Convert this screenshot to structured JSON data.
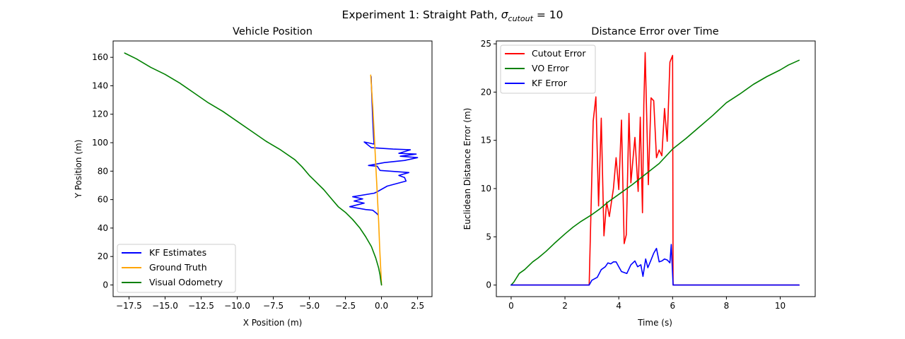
{
  "figure": {
    "suptitle_main": "Experiment 1: Straight Path, ",
    "suptitle_sigma": "σ",
    "suptitle_sub": "cutout",
    "suptitle_eq": " = 10"
  },
  "chart_data": [
    {
      "type": "line",
      "title": "Vehicle Position",
      "xlabel": "X Position (m)",
      "ylabel": "Y Position (m)",
      "xlim": [
        -18.6,
        3.5
      ],
      "ylim": [
        -8.2,
        171.5
      ],
      "xticks": [
        -17.5,
        -15.0,
        -12.5,
        -10.0,
        -7.5,
        -5.0,
        -2.5,
        0.0,
        2.5
      ],
      "xtick_labels": [
        "−17.5",
        "−15.0",
        "−12.5",
        "−10.0",
        "−7.5",
        "−5.0",
        "−2.5",
        "0.0",
        "2.5"
      ],
      "yticks": [
        0,
        20,
        40,
        60,
        80,
        100,
        120,
        140,
        160
      ],
      "ytick_labels": [
        "0",
        "20",
        "40",
        "60",
        "80",
        "100",
        "120",
        "140",
        "160"
      ],
      "legend_position": "lower-left",
      "series": [
        {
          "name": "KF Estimates",
          "color": "#0000ff",
          "points": [
            [
              -0.72,
              146.5
            ],
            [
              -0.66,
              130
            ],
            [
              -0.6,
              115
            ],
            [
              -0.55,
              104
            ],
            [
              -0.52,
              99
            ],
            [
              -1.2,
              100.5
            ],
            [
              -0.7,
              96.5
            ],
            [
              0.8,
              95.5
            ],
            [
              2.0,
              95.0
            ],
            [
              1.2,
              92.5
            ],
            [
              2.4,
              92.0
            ],
            [
              1.3,
              90.5
            ],
            [
              2.5,
              89.5
            ],
            [
              1.6,
              87.5
            ],
            [
              0.2,
              86
            ],
            [
              -0.9,
              84.0
            ],
            [
              -0.3,
              83.5
            ],
            [
              -0.1,
              80.5
            ],
            [
              1.9,
              79.0
            ],
            [
              1.2,
              77.0
            ],
            [
              1.6,
              75.5
            ],
            [
              1.7,
              73.0
            ],
            [
              0.4,
              69.5
            ],
            [
              -0.3,
              65.5
            ],
            [
              -0.5,
              64.5
            ],
            [
              -2.0,
              62.0
            ],
            [
              -1.3,
              60.5
            ],
            [
              -1.9,
              59
            ],
            [
              -1.2,
              57.5
            ],
            [
              -2.2,
              55.0
            ],
            [
              -1.1,
              53.0
            ],
            [
              -0.6,
              52.5
            ],
            [
              -0.3,
              50.0
            ],
            [
              -0.28,
              49.5
            ]
          ]
        },
        {
          "name": "Ground Truth",
          "color": "#ffa500",
          "points": [
            [
              -0.75,
              147.5
            ],
            [
              -0.6,
              125
            ],
            [
              -0.5,
              105
            ],
            [
              -0.4,
              85
            ],
            [
              -0.3,
              65
            ],
            [
              -0.2,
              45
            ],
            [
              -0.12,
              25
            ],
            [
              -0.05,
              10
            ],
            [
              0.0,
              0
            ]
          ]
        },
        {
          "name": "Visual Odometry",
          "color": "#008000",
          "points": [
            [
              -17.8,
              163
            ],
            [
              -17.0,
              159
            ],
            [
              -16.0,
              153
            ],
            [
              -15.0,
              148
            ],
            [
              -14.0,
              142
            ],
            [
              -13.0,
              135
            ],
            [
              -12.0,
              128
            ],
            [
              -11.0,
              122
            ],
            [
              -10.0,
              115
            ],
            [
              -9.0,
              108
            ],
            [
              -8.0,
              101
            ],
            [
              -7.0,
              95
            ],
            [
              -6.0,
              88
            ],
            [
              -5.5,
              83
            ],
            [
              -5.0,
              77
            ],
            [
              -4.5,
              72
            ],
            [
              -4.0,
              67
            ],
            [
              -3.5,
              61
            ],
            [
              -3.0,
              55
            ],
            [
              -2.5,
              51
            ],
            [
              -2.0,
              46
            ],
            [
              -1.5,
              40
            ],
            [
              -1.1,
              34
            ],
            [
              -0.7,
              27
            ],
            [
              -0.4,
              19
            ],
            [
              -0.2,
              12
            ],
            [
              -0.1,
              7
            ],
            [
              -0.05,
              3
            ],
            [
              0.0,
              0
            ]
          ]
        }
      ]
    },
    {
      "type": "line",
      "title": "Distance Error over Time",
      "xlabel": "Time (s)",
      "ylabel": "Euclidean Distance Error (m)",
      "xlim": [
        -0.55,
        11.3
      ],
      "ylim": [
        -1.2,
        25.3
      ],
      "xticks": [
        0,
        2,
        4,
        6,
        8,
        10
      ],
      "xtick_labels": [
        "0",
        "2",
        "4",
        "6",
        "8",
        "10"
      ],
      "yticks": [
        0,
        5,
        10,
        15,
        20,
        25
      ],
      "ytick_labels": [
        "0",
        "5",
        "10",
        "15",
        "20",
        "25"
      ],
      "legend_position": "upper-left",
      "series": [
        {
          "name": "Cutout Error",
          "color": "#ff0000",
          "points": [
            [
              0,
              0
            ],
            [
              2.9,
              0
            ],
            [
              3.05,
              17
            ],
            [
              3.15,
              19.5
            ],
            [
              3.25,
              8.2
            ],
            [
              3.35,
              17.3
            ],
            [
              3.45,
              5.1
            ],
            [
              3.55,
              8.6
            ],
            [
              3.65,
              7.1
            ],
            [
              3.8,
              10
            ],
            [
              3.9,
              13.2
            ],
            [
              4.0,
              9.9
            ],
            [
              4.1,
              17.1
            ],
            [
              4.2,
              4.3
            ],
            [
              4.28,
              5.2
            ],
            [
              4.38,
              17.8
            ],
            [
              4.45,
              10.6
            ],
            [
              4.6,
              15.3
            ],
            [
              4.72,
              9.7
            ],
            [
              4.8,
              17.4
            ],
            [
              4.88,
              7.5
            ],
            [
              4.93,
              18.7
            ],
            [
              4.98,
              24.1
            ],
            [
              5.1,
              10.4
            ],
            [
              5.2,
              19.4
            ],
            [
              5.3,
              19.1
            ],
            [
              5.4,
              13.2
            ],
            [
              5.5,
              14.0
            ],
            [
              5.6,
              13.4
            ],
            [
              5.7,
              18.3
            ],
            [
              5.8,
              14.9
            ],
            [
              5.9,
              23.1
            ],
            [
              6.0,
              23.8
            ],
            [
              6.02,
              0
            ],
            [
              10.7,
              0
            ]
          ]
        },
        {
          "name": "VO Error",
          "color": "#008000",
          "points": [
            [
              0,
              0
            ],
            [
              0.1,
              0.3
            ],
            [
              0.3,
              1.2
            ],
            [
              0.5,
              1.6
            ],
            [
              0.8,
              2.4
            ],
            [
              1.0,
              2.8
            ],
            [
              1.3,
              3.5
            ],
            [
              1.6,
              4.3
            ],
            [
              2.0,
              5.3
            ],
            [
              2.3,
              6.0
            ],
            [
              2.6,
              6.6
            ],
            [
              3.0,
              7.3
            ],
            [
              3.3,
              7.9
            ],
            [
              3.6,
              8.6
            ],
            [
              4.0,
              9.4
            ],
            [
              4.5,
              10.4
            ],
            [
              5.0,
              11.5
            ],
            [
              5.5,
              12.6
            ],
            [
              6.0,
              14.1
            ],
            [
              6.5,
              15.2
            ],
            [
              7.0,
              16.4
            ],
            [
              7.5,
              17.6
            ],
            [
              8.0,
              18.9
            ],
            [
              8.5,
              19.8
            ],
            [
              9.0,
              20.8
            ],
            [
              9.5,
              21.6
            ],
            [
              10.0,
              22.3
            ],
            [
              10.3,
              22.8
            ],
            [
              10.7,
              23.3
            ]
          ]
        },
        {
          "name": "KF Error",
          "color": "#0000ff",
          "points": [
            [
              0,
              0
            ],
            [
              2.9,
              0
            ],
            [
              3.0,
              0.5
            ],
            [
              3.2,
              0.8
            ],
            [
              3.35,
              1.6
            ],
            [
              3.5,
              1.9
            ],
            [
              3.6,
              2.3
            ],
            [
              3.7,
              2.2
            ],
            [
              3.8,
              2.4
            ],
            [
              3.9,
              2.4
            ],
            [
              4.0,
              1.9
            ],
            [
              4.1,
              1.4
            ],
            [
              4.3,
              1.2
            ],
            [
              4.45,
              2.1
            ],
            [
              4.6,
              2.5
            ],
            [
              4.7,
              1.9
            ],
            [
              4.82,
              2.1
            ],
            [
              4.9,
              0.9
            ],
            [
              5.0,
              2.7
            ],
            [
              5.08,
              1.8
            ],
            [
              5.2,
              2.6
            ],
            [
              5.3,
              3.3
            ],
            [
              5.4,
              3.8
            ],
            [
              5.5,
              2.4
            ],
            [
              5.6,
              2.5
            ],
            [
              5.7,
              2.7
            ],
            [
              5.8,
              2.6
            ],
            [
              5.9,
              2.3
            ],
            [
              5.95,
              4.2
            ],
            [
              6.02,
              0
            ],
            [
              10.7,
              0
            ]
          ]
        }
      ]
    }
  ]
}
